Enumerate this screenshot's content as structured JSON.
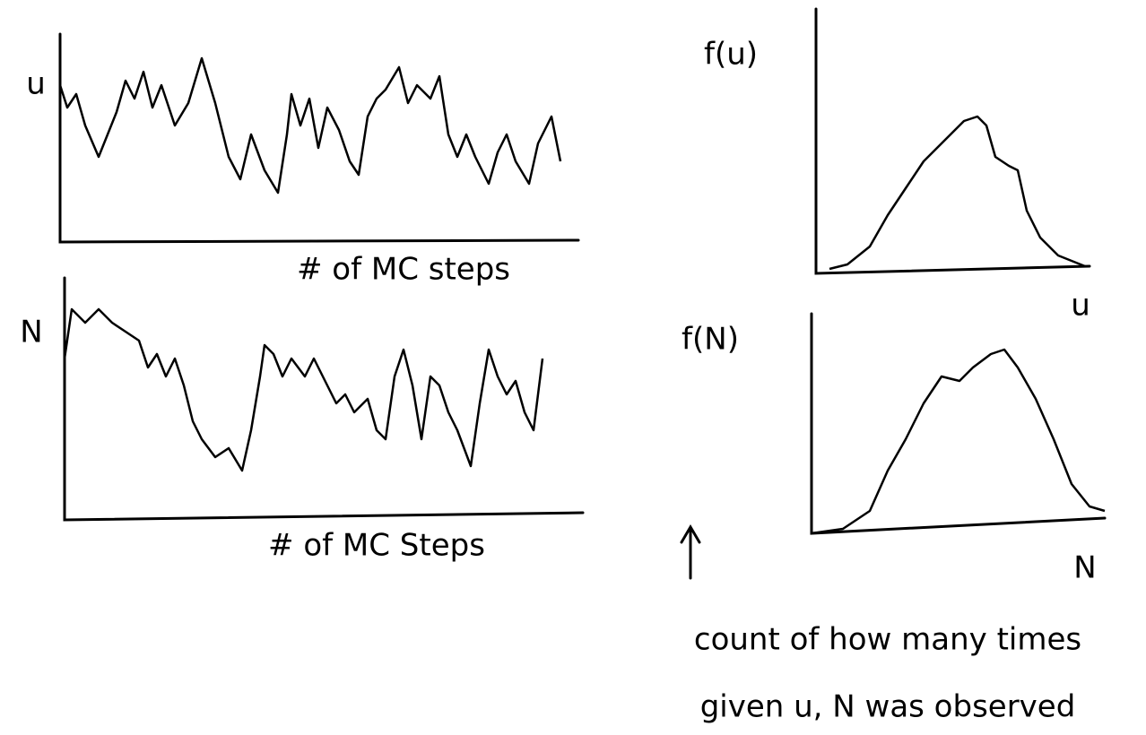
{
  "plots": [
    {
      "y_label": "u",
      "x_label": "# of MC steps"
    },
    {
      "y_label": "N",
      "x_label": "# of MC Steps"
    },
    {
      "y_label": "f(u)",
      "x_label": "u"
    },
    {
      "y_label": "f(N)",
      "x_label": "N"
    }
  ],
  "annotation": {
    "lines": [
      "count of how many times",
      "given u, N was observed"
    ]
  }
}
